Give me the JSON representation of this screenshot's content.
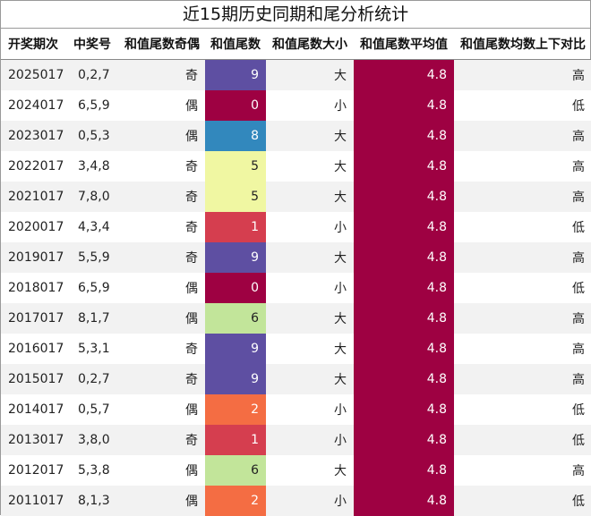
{
  "title": "近15期历史同期和尾分析统计",
  "headers": [
    "开奖期次",
    "中奖号",
    "和值尾数奇偶",
    "和值尾数",
    "和值尾数大小",
    "和值尾数平均值",
    "和值尾数均数上下对比"
  ],
  "avg_color": "#9e0142",
  "tail_colors": {
    "0": {
      "bg": "#9e0142",
      "fg": "#ffffff"
    },
    "1": {
      "bg": "#d53e4f",
      "fg": "#ffffff"
    },
    "2": {
      "bg": "#f46d43",
      "fg": "#ffffff"
    },
    "5": {
      "bg": "#f0f7a2",
      "fg": "#222222"
    },
    "6": {
      "bg": "#c2e59a",
      "fg": "#222222"
    },
    "8": {
      "bg": "#3288bd",
      "fg": "#ffffff"
    },
    "9": {
      "bg": "#5e4fa2",
      "fg": "#ffffff"
    }
  },
  "rows": [
    {
      "issue": "2025017",
      "number": "0,2,7",
      "odd_even": "奇",
      "tail": "9",
      "big_small": "大",
      "avg": "4.8",
      "compare": "高"
    },
    {
      "issue": "2024017",
      "number": "6,5,9",
      "odd_even": "偶",
      "tail": "0",
      "big_small": "小",
      "avg": "4.8",
      "compare": "低"
    },
    {
      "issue": "2023017",
      "number": "0,5,3",
      "odd_even": "偶",
      "tail": "8",
      "big_small": "大",
      "avg": "4.8",
      "compare": "高"
    },
    {
      "issue": "2022017",
      "number": "3,4,8",
      "odd_even": "奇",
      "tail": "5",
      "big_small": "大",
      "avg": "4.8",
      "compare": "高"
    },
    {
      "issue": "2021017",
      "number": "7,8,0",
      "odd_even": "奇",
      "tail": "5",
      "big_small": "大",
      "avg": "4.8",
      "compare": "高"
    },
    {
      "issue": "2020017",
      "number": "4,3,4",
      "odd_even": "奇",
      "tail": "1",
      "big_small": "小",
      "avg": "4.8",
      "compare": "低"
    },
    {
      "issue": "2019017",
      "number": "5,5,9",
      "odd_even": "奇",
      "tail": "9",
      "big_small": "大",
      "avg": "4.8",
      "compare": "高"
    },
    {
      "issue": "2018017",
      "number": "6,5,9",
      "odd_even": "偶",
      "tail": "0",
      "big_small": "小",
      "avg": "4.8",
      "compare": "低"
    },
    {
      "issue": "2017017",
      "number": "8,1,7",
      "odd_even": "偶",
      "tail": "6",
      "big_small": "大",
      "avg": "4.8",
      "compare": "高"
    },
    {
      "issue": "2016017",
      "number": "5,3,1",
      "odd_even": "奇",
      "tail": "9",
      "big_small": "大",
      "avg": "4.8",
      "compare": "高"
    },
    {
      "issue": "2015017",
      "number": "0,2,7",
      "odd_even": "奇",
      "tail": "9",
      "big_small": "大",
      "avg": "4.8",
      "compare": "高"
    },
    {
      "issue": "2014017",
      "number": "0,5,7",
      "odd_even": "偶",
      "tail": "2",
      "big_small": "小",
      "avg": "4.8",
      "compare": "低"
    },
    {
      "issue": "2013017",
      "number": "3,8,0",
      "odd_even": "奇",
      "tail": "1",
      "big_small": "小",
      "avg": "4.8",
      "compare": "低"
    },
    {
      "issue": "2012017",
      "number": "5,3,8",
      "odd_even": "偶",
      "tail": "6",
      "big_small": "大",
      "avg": "4.8",
      "compare": "高"
    },
    {
      "issue": "2011017",
      "number": "8,1,3",
      "odd_even": "偶",
      "tail": "2",
      "big_small": "小",
      "avg": "4.8",
      "compare": "低"
    }
  ]
}
